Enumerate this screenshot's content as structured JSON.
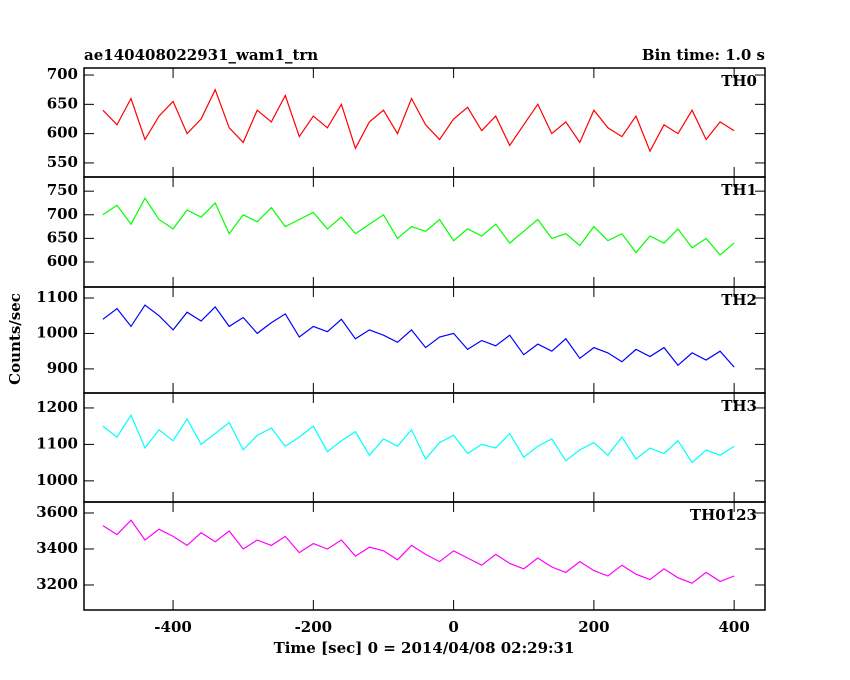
{
  "title": "ae140408022931_wam1_trn",
  "bin_time": "Bin time: 1.0 s",
  "y_label": "Counts/sec",
  "x_label": "Time [sec] 0 = 2014/04/08 02:29:31",
  "chart_data": [
    {
      "type": "line",
      "xlim": [
        -527,
        444
      ],
      "ylim": [
        526,
        712
      ],
      "yticks": [
        550,
        600,
        650,
        700
      ],
      "x": [
        -500,
        -480,
        -460,
        -440,
        -420,
        -400,
        -380,
        -360,
        -340,
        -320,
        -300,
        -280,
        -260,
        -240,
        -220,
        -200,
        -180,
        -160,
        -140,
        -120,
        -100,
        -80,
        -60,
        -40,
        -20,
        0,
        20,
        40,
        60,
        80,
        100,
        120,
        140,
        160,
        180,
        200,
        220,
        240,
        260,
        280,
        300,
        320,
        340,
        360,
        380,
        400
      ],
      "series": [
        {
          "name": "TH0",
          "color": "#ff0000",
          "values": [
            640,
            615,
            660,
            590,
            630,
            655,
            600,
            625,
            675,
            610,
            585,
            640,
            620,
            665,
            595,
            630,
            610,
            650,
            575,
            620,
            640,
            600,
            660,
            615,
            590,
            625,
            645,
            605,
            630,
            580,
            615,
            650,
            600,
            620,
            585,
            640,
            610,
            595,
            630,
            570,
            615,
            600,
            640,
            590,
            620,
            605
          ]
        }
      ]
    },
    {
      "type": "line",
      "xlim": [
        -527,
        444
      ],
      "ylim": [
        547,
        780
      ],
      "yticks": [
        600,
        650,
        700,
        750
      ],
      "x": [
        -500,
        -480,
        -460,
        -440,
        -420,
        -400,
        -380,
        -360,
        -340,
        -320,
        -300,
        -280,
        -260,
        -240,
        -220,
        -200,
        -180,
        -160,
        -140,
        -120,
        -100,
        -80,
        -60,
        -40,
        -20,
        0,
        20,
        40,
        60,
        80,
        100,
        120,
        140,
        160,
        180,
        200,
        220,
        240,
        260,
        280,
        300,
        320,
        340,
        360,
        380,
        400
      ],
      "series": [
        {
          "name": "TH1",
          "color": "#00ff00",
          "values": [
            700,
            720,
            680,
            735,
            690,
            670,
            710,
            695,
            725,
            660,
            700,
            685,
            715,
            675,
            690,
            705,
            670,
            695,
            660,
            680,
            700,
            650,
            675,
            665,
            690,
            645,
            670,
            655,
            680,
            640,
            665,
            690,
            650,
            660,
            635,
            675,
            645,
            660,
            620,
            655,
            640,
            670,
            630,
            650,
            615,
            640
          ]
        }
      ]
    },
    {
      "type": "line",
      "xlim": [
        -527,
        444
      ],
      "ylim": [
        832,
        1131
      ],
      "yticks": [
        900,
        1000,
        1100
      ],
      "x": [
        -500,
        -480,
        -460,
        -440,
        -420,
        -400,
        -380,
        -360,
        -340,
        -320,
        -300,
        -280,
        -260,
        -240,
        -220,
        -200,
        -180,
        -160,
        -140,
        -120,
        -100,
        -80,
        -60,
        -40,
        -20,
        0,
        20,
        40,
        60,
        80,
        100,
        120,
        140,
        160,
        180,
        200,
        220,
        240,
        260,
        280,
        300,
        320,
        340,
        360,
        380,
        400
      ],
      "series": [
        {
          "name": "TH2",
          "color": "#0000ff",
          "values": [
            1040,
            1070,
            1020,
            1080,
            1050,
            1010,
            1060,
            1035,
            1075,
            1020,
            1045,
            1000,
            1030,
            1055,
            990,
            1020,
            1005,
            1040,
            985,
            1010,
            995,
            975,
            1010,
            960,
            990,
            1000,
            955,
            980,
            965,
            995,
            940,
            970,
            950,
            985,
            930,
            960,
            945,
            920,
            955,
            935,
            960,
            910,
            945,
            925,
            950,
            905
          ]
        }
      ]
    },
    {
      "type": "line",
      "xlim": [
        -527,
        444
      ],
      "ylim": [
        942,
        1241
      ],
      "yticks": [
        1000,
        1100,
        1200
      ],
      "x": [
        -500,
        -480,
        -460,
        -440,
        -420,
        -400,
        -380,
        -360,
        -340,
        -320,
        -300,
        -280,
        -260,
        -240,
        -220,
        -200,
        -180,
        -160,
        -140,
        -120,
        -100,
        -80,
        -60,
        -40,
        -20,
        0,
        20,
        40,
        60,
        80,
        100,
        120,
        140,
        160,
        180,
        200,
        220,
        240,
        260,
        280,
        300,
        320,
        340,
        360,
        380,
        400
      ],
      "series": [
        {
          "name": "TH3",
          "color": "#00ffff",
          "values": [
            1150,
            1120,
            1180,
            1090,
            1140,
            1110,
            1170,
            1100,
            1130,
            1160,
            1085,
            1125,
            1145,
            1095,
            1120,
            1150,
            1080,
            1110,
            1135,
            1070,
            1115,
            1095,
            1140,
            1060,
            1105,
            1125,
            1075,
            1100,
            1090,
            1130,
            1065,
            1095,
            1115,
            1055,
            1085,
            1105,
            1070,
            1120,
            1060,
            1090,
            1075,
            1110,
            1050,
            1085,
            1070,
            1095
          ]
        }
      ]
    },
    {
      "type": "line",
      "xlim": [
        -527,
        444
      ],
      "ylim": [
        3061,
        3661
      ],
      "yticks": [
        3200,
        3400,
        3600
      ],
      "xticks": [
        -400,
        -200,
        0,
        200,
        400
      ],
      "x": [
        -500,
        -480,
        -460,
        -440,
        -420,
        -400,
        -380,
        -360,
        -340,
        -320,
        -300,
        -280,
        -260,
        -240,
        -220,
        -200,
        -180,
        -160,
        -140,
        -120,
        -100,
        -80,
        -60,
        -40,
        -20,
        0,
        20,
        40,
        60,
        80,
        100,
        120,
        140,
        160,
        180,
        200,
        220,
        240,
        260,
        280,
        300,
        320,
        340,
        360,
        380,
        400
      ],
      "series": [
        {
          "name": "TH0123",
          "color": "#ff00ff",
          "values": [
            3530,
            3480,
            3560,
            3450,
            3510,
            3470,
            3420,
            3490,
            3440,
            3500,
            3400,
            3450,
            3420,
            3470,
            3380,
            3430,
            3400,
            3450,
            3360,
            3410,
            3390,
            3340,
            3420,
            3370,
            3330,
            3390,
            3350,
            3310,
            3370,
            3320,
            3290,
            3350,
            3300,
            3270,
            3330,
            3280,
            3250,
            3310,
            3260,
            3230,
            3290,
            3240,
            3210,
            3270,
            3220,
            3250
          ]
        }
      ]
    }
  ]
}
